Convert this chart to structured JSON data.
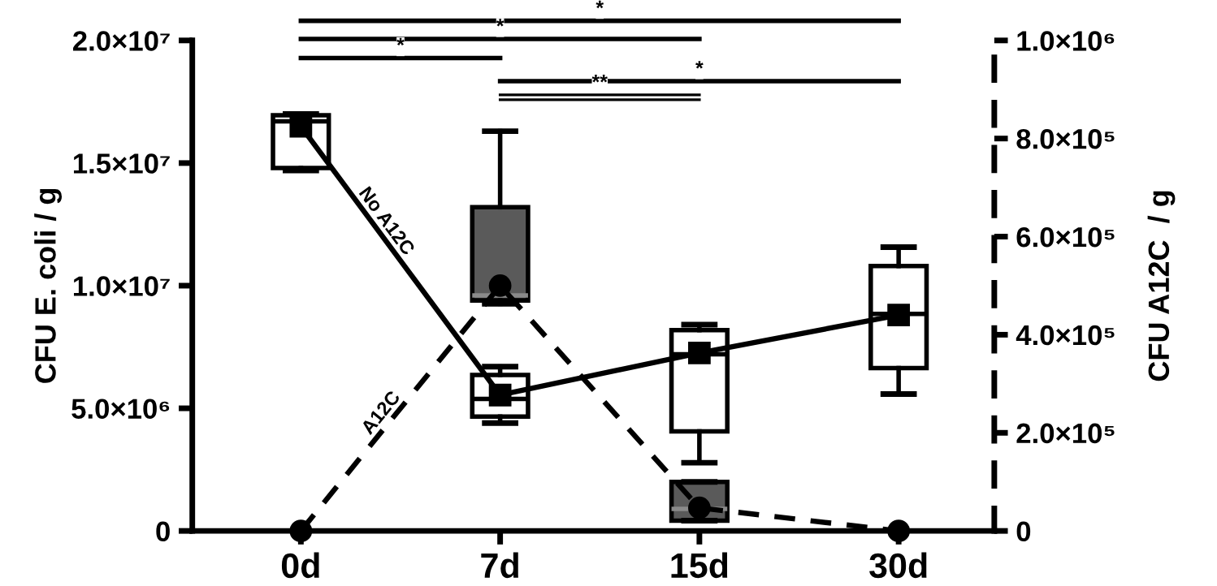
{
  "chart_data": {
    "type": "box",
    "categories": [
      "0d",
      "7d",
      "15d",
      "30d"
    ],
    "ylabel": "CFU E. coli / g",
    "y2label": "CFU A12C  / g",
    "ylim": [
      0,
      20000000
    ],
    "yticks": [
      {
        "value": 0,
        "label": "0"
      },
      {
        "value": 5000000,
        "label": "5.0×10⁶"
      },
      {
        "value": 10000000,
        "label": "1.0×10⁷"
      },
      {
        "value": 15000000,
        "label": "1.5×10⁷"
      },
      {
        "value": 20000000,
        "label": "2.0×10⁷"
      }
    ],
    "y2lim": [
      0,
      1000000
    ],
    "y2ticks": [
      {
        "value": 0,
        "label": "0"
      },
      {
        "value": 200000,
        "label": "2.0×10⁵"
      },
      {
        "value": 400000,
        "label": "4.0×10⁵"
      },
      {
        "value": 600000,
        "label": "6.0×10⁵"
      },
      {
        "value": 800000,
        "label": "8.0×10⁵"
      },
      {
        "value": 1000000,
        "label": "1.0×10⁶"
      }
    ],
    "series": [
      {
        "color": "#ffffff",
        "boxes": [
          {
            "low": 14700000,
            "q1": 14800000,
            "median": 16700000,
            "q3": 16950000,
            "high": 17000000
          },
          {
            "low": 4400000,
            "q1": 4660000,
            "median": 5380000,
            "q3": 6360000,
            "high": 6700000
          },
          {
            "low": 2780000,
            "q1": 4060000,
            "median": 7200000,
            "q3": 8190000,
            "high": 8410000
          },
          {
            "low": 5580000,
            "q1": 6640000,
            "median": 8850000,
            "q3": 10800000,
            "high": 11570000
          }
        ]
      },
      {
        "color": "#5a5a5a",
        "axis": "y2",
        "boxes": [
          null,
          {
            "low": 463000,
            "q1": 470000,
            "median": 480000,
            "q3": 660000,
            "high": 815000
          },
          {
            "low": 21000,
            "q1": 21000,
            "median": 45000,
            "q3": 100000,
            "high": 100000
          },
          null
        ]
      },
      {
        "type": "line",
        "name": "No A12C",
        "color": "#000000",
        "marker": "square",
        "line_style": "solid",
        "values": [
          16500000,
          5540000,
          7260000,
          8800000
        ]
      },
      {
        "type": "line",
        "name": "A12C",
        "color": "#000000",
        "axis": "y2",
        "marker": "circle",
        "line_style": "dashed",
        "values": [
          0,
          500000,
          47000,
          0
        ]
      }
    ],
    "annotations": [
      "*",
      "*",
      "*",
      "*",
      "**"
    ],
    "grid": false,
    "legend": false
  }
}
